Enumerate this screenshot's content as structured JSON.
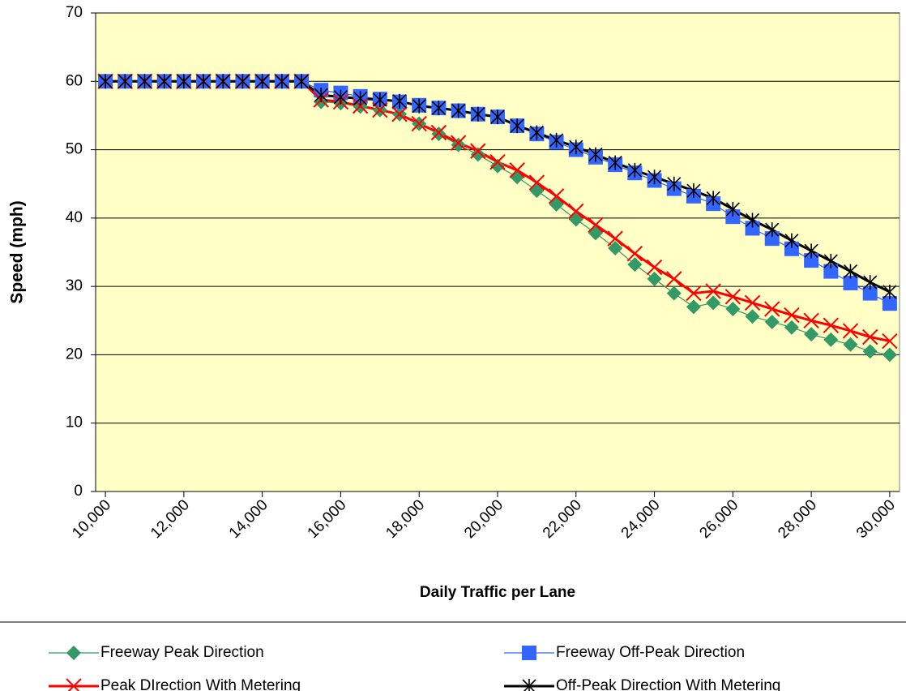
{
  "chart_data": {
    "type": "line",
    "x_label": "Daily Traffic per Lane",
    "y_label": "Speed (mph)",
    "x": [
      10000,
      10500,
      11000,
      11500,
      12000,
      12500,
      13000,
      13500,
      14000,
      14500,
      15000,
      15500,
      16000,
      16500,
      17000,
      17500,
      18000,
      18500,
      19000,
      19500,
      20000,
      20500,
      21000,
      21500,
      22000,
      22500,
      23000,
      23500,
      24000,
      24500,
      25000,
      25500,
      26000,
      26500,
      27000,
      27500,
      28000,
      28500,
      29000,
      29500,
      30000
    ],
    "xlim": [
      9750,
      30250
    ],
    "xticks": [
      {
        "value": 10000,
        "label": "10,000"
      },
      {
        "value": 12000,
        "label": "12,000"
      },
      {
        "value": 14000,
        "label": "14,000"
      },
      {
        "value": 16000,
        "label": "16,000"
      },
      {
        "value": 18000,
        "label": "18,000"
      },
      {
        "value": 20000,
        "label": "20,000"
      },
      {
        "value": 22000,
        "label": "22,000"
      },
      {
        "value": 24000,
        "label": "24,000"
      },
      {
        "value": 26000,
        "label": "26,000"
      },
      {
        "value": 28000,
        "label": "28,000"
      },
      {
        "value": 30000,
        "label": "30,000"
      }
    ],
    "ylim": [
      0,
      70
    ],
    "yticks": [
      0,
      10,
      20,
      30,
      40,
      50,
      60,
      70
    ],
    "grid": true,
    "background": "#ffffc6",
    "series": [
      {
        "name": "Freeway Peak Direction",
        "color": "#339966",
        "marker": "diamond",
        "values": [
          60,
          60,
          60,
          60,
          60,
          60,
          60,
          60,
          60,
          60,
          60,
          57,
          56.8,
          56.3,
          55.8,
          55.2,
          53.8,
          52.3,
          50.7,
          49.3,
          47.6,
          46,
          44,
          42,
          39.8,
          37.8,
          35.6,
          33.2,
          31.1,
          29,
          27,
          27.6,
          26.7,
          25.6,
          24.8,
          24,
          23,
          22.2,
          21.5,
          20.5,
          20
        ]
      },
      {
        "name": "Freeway Off-Peak Direction",
        "color": "#3366ff",
        "marker": "square",
        "values": [
          60,
          60,
          60,
          60,
          60,
          60,
          60,
          60,
          60,
          60,
          60,
          58.7,
          58.3,
          57.8,
          57.4,
          57,
          56.5,
          56.1,
          55.7,
          55.2,
          54.8,
          53.5,
          52.3,
          51.1,
          50,
          48.9,
          47.8,
          46.6,
          45.5,
          44.3,
          43.2,
          42.1,
          40.2,
          38.5,
          37,
          35.5,
          33.8,
          32.2,
          30.5,
          29,
          27.5
        ]
      },
      {
        "name": "Peak DIrection With Metering",
        "color": "#ff0000",
        "marker": "x",
        "values": [
          60,
          60,
          60,
          60,
          60,
          60,
          60,
          60,
          60,
          60,
          60,
          57.3,
          57,
          56.4,
          55.8,
          55.2,
          53.8,
          52.5,
          51,
          49.8,
          48.2,
          47,
          45.2,
          43.2,
          41,
          39,
          37,
          34.8,
          32.8,
          31.1,
          29,
          29.3,
          28.5,
          27.6,
          26.7,
          25.8,
          25,
          24.3,
          23.5,
          22.6,
          22
        ]
      },
      {
        "name": "Off-Peak Direction With Metering",
        "color": "#000000",
        "marker": "star",
        "values": [
          60,
          60,
          60,
          60,
          60,
          60,
          60,
          60,
          60,
          60,
          60,
          58,
          57.7,
          57.5,
          57.3,
          57.1,
          56.4,
          56.1,
          55.7,
          55.2,
          54.8,
          53.5,
          52.5,
          51.4,
          50.4,
          49.3,
          48.1,
          47,
          46,
          45,
          44,
          42.9,
          41.3,
          39.7,
          38.3,
          36.7,
          35.2,
          33.7,
          32.2,
          30.6,
          29.2
        ]
      }
    ]
  }
}
